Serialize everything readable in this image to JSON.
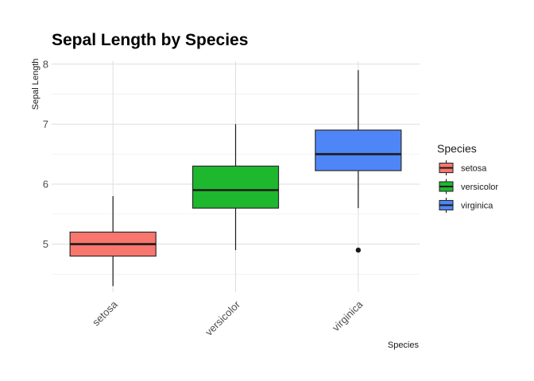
{
  "chart_data": {
    "type": "boxplot",
    "title": "Sepal Length by Species",
    "xlabel": "Species",
    "ylabel": "Sepal Length",
    "categories": [
      "setosa",
      "versicolor",
      "virginica"
    ],
    "ylim": [
      4.2,
      8.05
    ],
    "yticks": [
      5,
      6,
      7,
      8
    ],
    "ytick_labels": [
      "5",
      "6",
      "7",
      "8"
    ],
    "grid": true,
    "legend": {
      "title": "Species",
      "position": "right",
      "entries": [
        "setosa",
        "versicolor",
        "virginica"
      ]
    },
    "series": [
      {
        "name": "setosa",
        "color": "#F8766D",
        "min": 4.3,
        "q1": 4.8,
        "median": 5.0,
        "q3": 5.2,
        "max": 5.8,
        "outliers": []
      },
      {
        "name": "versicolor",
        "color": "#1DB82E",
        "min": 4.9,
        "q1": 5.6,
        "median": 5.9,
        "q3": 6.3,
        "max": 7.0,
        "outliers": []
      },
      {
        "name": "virginica",
        "color": "#4F86F7",
        "min": 5.6,
        "q1": 6.225,
        "median": 6.5,
        "q3": 6.9,
        "max": 7.9,
        "outliers": [
          4.9
        ]
      }
    ]
  }
}
